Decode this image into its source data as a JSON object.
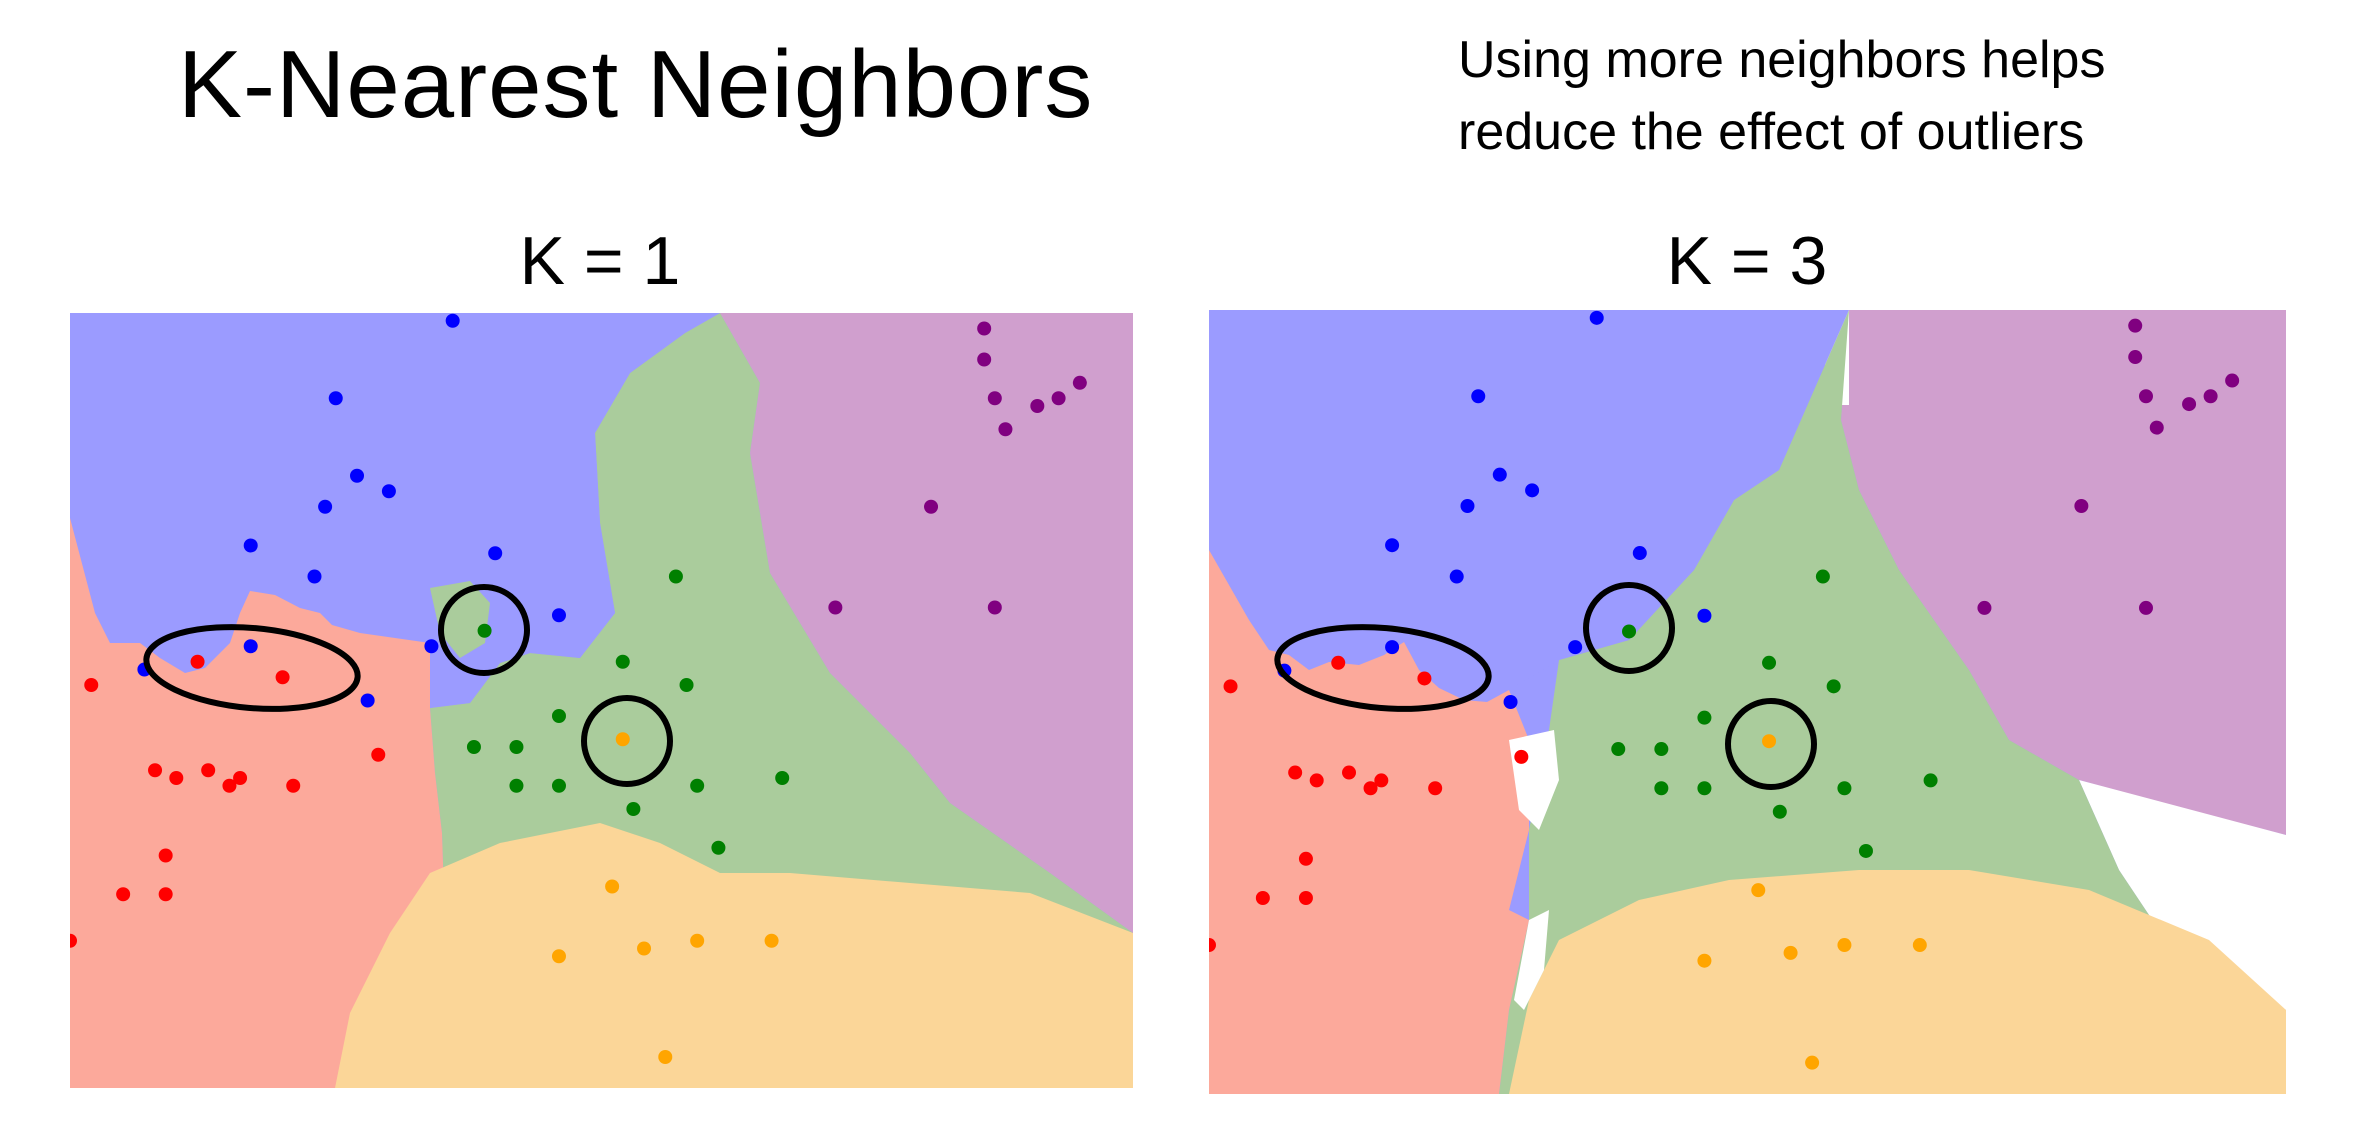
{
  "title": "K-Nearest Neighbors",
  "subtitle_lines": [
    "Using more neighbors helps",
    "reduce the effect of outliers"
  ],
  "panels": [
    {
      "label": "K = 1"
    },
    {
      "label": "K = 3"
    }
  ],
  "colors": {
    "blue_region": "#9b9bff",
    "green_region": "#aacc9c",
    "red_region": "#fca99b",
    "purple_region": "#d09fce",
    "orange_region": "#fbd698",
    "blue_point": "#0000ff",
    "green_point": "#008000",
    "red_point": "#ff0000",
    "purple_point": "#800080",
    "orange_point": "#ffa500"
  },
  "points": {
    "blue": [
      [
        0.36,
        0.01
      ],
      [
        0.25,
        0.11
      ],
      [
        0.27,
        0.21
      ],
      [
        0.24,
        0.25
      ],
      [
        0.3,
        0.23
      ],
      [
        0.17,
        0.3
      ],
      [
        0.23,
        0.34
      ],
      [
        0.4,
        0.31
      ],
      [
        0.46,
        0.39
      ],
      [
        0.17,
        0.43
      ],
      [
        0.34,
        0.43
      ],
      [
        0.07,
        0.46
      ],
      [
        0.28,
        0.5
      ]
    ],
    "green": [
      [
        0.57,
        0.34
      ],
      [
        0.39,
        0.41
      ],
      [
        0.52,
        0.45
      ],
      [
        0.58,
        0.48
      ],
      [
        0.46,
        0.52
      ],
      [
        0.38,
        0.56
      ],
      [
        0.42,
        0.56
      ],
      [
        0.46,
        0.61
      ],
      [
        0.42,
        0.61
      ],
      [
        0.59,
        0.61
      ],
      [
        0.67,
        0.6
      ],
      [
        0.53,
        0.64
      ],
      [
        0.61,
        0.69
      ]
    ],
    "red": [
      [
        0.12,
        0.45
      ],
      [
        0.2,
        0.47
      ],
      [
        0.02,
        0.48
      ],
      [
        0.29,
        0.57
      ],
      [
        0.08,
        0.59
      ],
      [
        0.1,
        0.6
      ],
      [
        0.13,
        0.59
      ],
      [
        0.15,
        0.61
      ],
      [
        0.16,
        0.6
      ],
      [
        0.21,
        0.61
      ],
      [
        0.09,
        0.7
      ],
      [
        0.05,
        0.75
      ],
      [
        0.09,
        0.75
      ],
      [
        0.0,
        0.81
      ]
    ],
    "purple": [
      [
        0.86,
        0.02
      ],
      [
        0.86,
        0.06
      ],
      [
        0.87,
        0.11
      ],
      [
        0.91,
        0.12
      ],
      [
        0.93,
        0.11
      ],
      [
        0.95,
        0.09
      ],
      [
        0.88,
        0.15
      ],
      [
        0.81,
        0.25
      ],
      [
        0.72,
        0.38
      ],
      [
        0.87,
        0.38
      ]
    ],
    "orange": [
      [
        0.52,
        0.55
      ],
      [
        0.51,
        0.74
      ],
      [
        0.46,
        0.83
      ],
      [
        0.54,
        0.82
      ],
      [
        0.59,
        0.81
      ],
      [
        0.66,
        0.81
      ],
      [
        0.56,
        0.96
      ]
    ]
  }
}
